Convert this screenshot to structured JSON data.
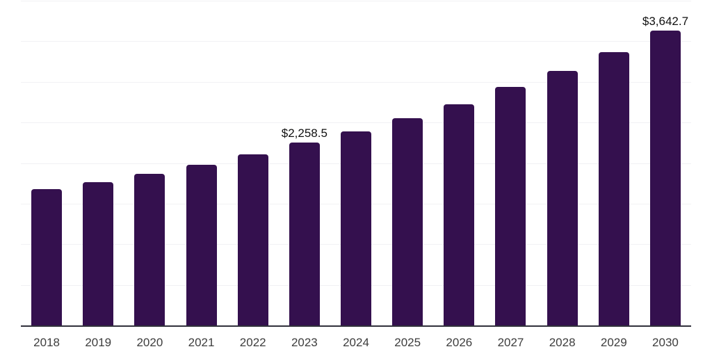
{
  "chart_data": {
    "type": "bar",
    "title": "",
    "xlabel": "",
    "ylabel": "",
    "categories": [
      "2018",
      "2019",
      "2020",
      "2021",
      "2022",
      "2023",
      "2024",
      "2025",
      "2026",
      "2027",
      "2028",
      "2029",
      "2030"
    ],
    "values": [
      1690,
      1775,
      1875,
      1990,
      2115,
      2258.5,
      2395,
      2560,
      2735,
      2950,
      3145,
      3375,
      3642.7
    ],
    "data_labels": [
      "",
      "",
      "",
      "",
      "",
      "$2,258.5",
      "",
      "",
      "",
      "",
      "",
      "",
      "$3,642.7"
    ],
    "ylim": [
      0,
      4000
    ],
    "gridline_step": 500,
    "grid": true,
    "y_tick_labels_shown": false,
    "legend_position": "none"
  },
  "colors": {
    "bar": "#34104e",
    "axis_line": "#31313b",
    "gridline": "#f1f1f4",
    "value_label_text": "#101010",
    "tick_label_text": "#3d3d3d",
    "background": "#ffffff"
  }
}
